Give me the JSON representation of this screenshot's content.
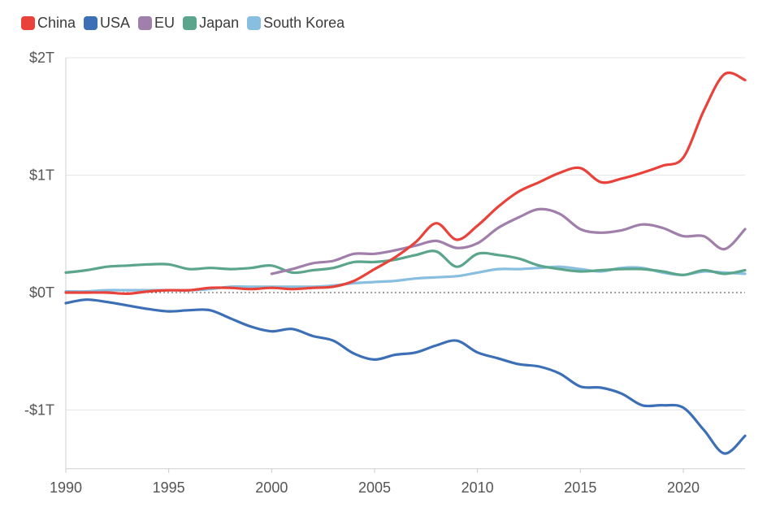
{
  "chart_data": {
    "type": "line",
    "title": "",
    "xlabel": "",
    "ylabel": "",
    "xlim": [
      1990,
      2023
    ],
    "ylim": [
      -1.5,
      2.0
    ],
    "y_unit": "trillion USD",
    "grid": true,
    "legend_position": "top-left",
    "x_ticks": [
      1990,
      1995,
      2000,
      2005,
      2010,
      2015,
      2020
    ],
    "x_tick_labels": [
      "1990",
      "1995",
      "2000",
      "2005",
      "2010",
      "2015",
      "2020"
    ],
    "y_ticks": [
      2,
      1,
      0,
      -1
    ],
    "y_tick_labels": [
      "$2T",
      "$1T",
      "$0T",
      "-$1T"
    ],
    "zero_line": "dotted",
    "series": [
      {
        "name": "China",
        "color": "#e8423a",
        "x": [
          1990,
          1991,
          1992,
          1993,
          1994,
          1995,
          1996,
          1997,
          1998,
          1999,
          2000,
          2001,
          2002,
          2003,
          2004,
          2005,
          2006,
          2007,
          2008,
          2009,
          2010,
          2011,
          2012,
          2013,
          2014,
          2015,
          2016,
          2017,
          2018,
          2019,
          2020,
          2021,
          2022,
          2023
        ],
        "values": [
          0.0,
          0.0,
          0.0,
          -0.01,
          0.01,
          0.02,
          0.02,
          0.04,
          0.04,
          0.03,
          0.04,
          0.03,
          0.04,
          0.05,
          0.1,
          0.2,
          0.3,
          0.43,
          0.59,
          0.45,
          0.57,
          0.73,
          0.86,
          0.94,
          1.02,
          1.06,
          0.94,
          0.97,
          1.02,
          1.08,
          1.15,
          1.55,
          1.86,
          1.81
        ]
      },
      {
        "name": "USA",
        "color": "#3c6fb5",
        "x": [
          1990,
          1991,
          1992,
          1993,
          1994,
          1995,
          1996,
          1997,
          1998,
          1999,
          2000,
          2001,
          2002,
          2003,
          2004,
          2005,
          2006,
          2007,
          2008,
          2009,
          2010,
          2011,
          2012,
          2013,
          2014,
          2015,
          2016,
          2017,
          2018,
          2019,
          2020,
          2021,
          2022,
          2023
        ],
        "values": [
          -0.09,
          -0.06,
          -0.08,
          -0.11,
          -0.14,
          -0.16,
          -0.15,
          -0.15,
          -0.22,
          -0.29,
          -0.33,
          -0.31,
          -0.37,
          -0.41,
          -0.52,
          -0.57,
          -0.53,
          -0.51,
          -0.45,
          -0.41,
          -0.51,
          -0.56,
          -0.61,
          -0.63,
          -0.69,
          -0.8,
          -0.81,
          -0.86,
          -0.96,
          -0.96,
          -0.98,
          -1.17,
          -1.37,
          -1.22
        ]
      },
      {
        "name": "EU",
        "color": "#a07fab",
        "x": [
          2000,
          2001,
          2002,
          2003,
          2004,
          2005,
          2006,
          2007,
          2008,
          2009,
          2010,
          2011,
          2012,
          2013,
          2014,
          2015,
          2016,
          2017,
          2018,
          2019,
          2020,
          2021,
          2022,
          2023
        ],
        "values": [
          0.16,
          0.2,
          0.25,
          0.27,
          0.33,
          0.33,
          0.36,
          0.4,
          0.44,
          0.38,
          0.42,
          0.55,
          0.64,
          0.71,
          0.67,
          0.54,
          0.51,
          0.53,
          0.58,
          0.55,
          0.48,
          0.48,
          0.37,
          0.54
        ]
      },
      {
        "name": "Japan",
        "color": "#5aa58c",
        "x": [
          1990,
          1991,
          1992,
          1993,
          1994,
          1995,
          1996,
          1997,
          1998,
          1999,
          2000,
          2001,
          2002,
          2003,
          2004,
          2005,
          2006,
          2007,
          2008,
          2009,
          2010,
          2011,
          2012,
          2013,
          2014,
          2015,
          2016,
          2017,
          2018,
          2019,
          2020,
          2021,
          2022,
          2023
        ],
        "values": [
          0.17,
          0.19,
          0.22,
          0.23,
          0.24,
          0.24,
          0.2,
          0.21,
          0.2,
          0.21,
          0.23,
          0.17,
          0.19,
          0.21,
          0.26,
          0.26,
          0.28,
          0.32,
          0.35,
          0.22,
          0.33,
          0.32,
          0.29,
          0.23,
          0.2,
          0.18,
          0.19,
          0.2,
          0.2,
          0.18,
          0.15,
          0.19,
          0.16,
          0.19
        ]
      },
      {
        "name": "South Korea",
        "color": "#88bedf",
        "x": [
          1990,
          1991,
          1992,
          1993,
          1994,
          1995,
          1996,
          1997,
          1998,
          1999,
          2000,
          2001,
          2002,
          2003,
          2004,
          2005,
          2006,
          2007,
          2008,
          2009,
          2010,
          2011,
          2012,
          2013,
          2014,
          2015,
          2016,
          2017,
          2018,
          2019,
          2020,
          2021,
          2022,
          2023
        ],
        "values": [
          0.01,
          0.01,
          0.02,
          0.02,
          0.02,
          0.02,
          0.02,
          0.03,
          0.05,
          0.05,
          0.05,
          0.05,
          0.05,
          0.06,
          0.08,
          0.09,
          0.1,
          0.12,
          0.13,
          0.14,
          0.17,
          0.2,
          0.2,
          0.21,
          0.22,
          0.2,
          0.18,
          0.21,
          0.21,
          0.17,
          0.15,
          0.18,
          0.17,
          0.16
        ]
      }
    ]
  }
}
